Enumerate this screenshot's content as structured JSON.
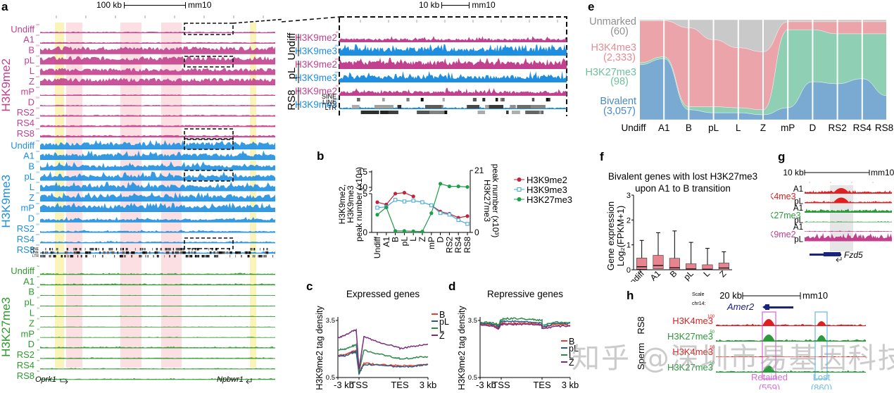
{
  "panel_a": {
    "label": "a",
    "scale": {
      "length": "100 kb",
      "assembly": "mm10"
    },
    "groups": [
      {
        "name": "H3K9me2",
        "color": "#c2418f",
        "scale_max": "100",
        "tracks": [
          "Undiff",
          "A1",
          "B",
          "pL",
          "L",
          "Z",
          "mP",
          "D",
          "RS2",
          "RS4",
          "RS8"
        ],
        "signal": [
          0.15,
          0.15,
          0.85,
          0.9,
          0.75,
          0.8,
          0.12,
          0.12,
          0.18,
          0.2,
          0.25
        ]
      },
      {
        "name": "H3K9me3",
        "color": "#1e8fe0",
        "scale_max": "150",
        "tracks": [
          "Undiff",
          "A1",
          "B",
          "pL",
          "L",
          "Z",
          "mP",
          "D",
          "RS2",
          "RS4",
          "RS8"
        ],
        "signal": [
          0.8,
          0.7,
          0.6,
          0.65,
          0.7,
          0.75,
          0.8,
          0.4,
          0.2,
          0.15,
          0.15
        ]
      },
      {
        "name": "H3K27me3",
        "color": "#2e9a2e",
        "scale_max": "50",
        "tracks": [
          "Undiff",
          "A1",
          "B",
          "pL",
          "L",
          "Z",
          "mP",
          "D",
          "RS2",
          "RS4",
          "RS8"
        ],
        "signal": [
          0.12,
          0.14,
          0.05,
          0.05,
          0.05,
          0.05,
          0.06,
          0.12,
          0.1,
          0.08,
          0.1
        ]
      }
    ],
    "repeat_labels": [
      "SINE",
      "LINE",
      "LTR"
    ],
    "genes": [
      {
        "name": "Oprk1"
      },
      {
        "name": "Npbwr1"
      }
    ]
  },
  "panel_a_zoom": {
    "scale": {
      "length": "10 kb",
      "assembly": "mm10"
    },
    "samples": [
      "Undiff",
      "pL",
      "RS8"
    ],
    "tracks": [
      {
        "sample": "Undiff",
        "mark": "H3K9me2",
        "color": "#c2418f",
        "scale_max": "50",
        "level": 0.35
      },
      {
        "sample": "Undiff",
        "mark": "H3K9me3",
        "color": "#1e8fe0",
        "scale_max": "150",
        "level": 0.8
      },
      {
        "sample": "pL",
        "mark": "H3K9me2",
        "color": "#c2418f",
        "scale_max": "100",
        "level": 0.75
      },
      {
        "sample": "pL",
        "mark": "H3K9me3",
        "color": "#1e8fe0",
        "scale_max": "150",
        "level": 0.65
      },
      {
        "sample": "RS8",
        "mark": "H3K9me2",
        "color": "#c2418f",
        "scale_max": "50",
        "level": 0.45
      },
      {
        "sample": "RS8",
        "mark": "H3K9me3",
        "color": "#1e8fe0",
        "scale_max": "150",
        "level": 0.15
      }
    ],
    "repeat_labels": [
      "SINE",
      "LINE",
      "LTR"
    ]
  },
  "panel_b": {
    "label": "b",
    "chart_data": {
      "type": "line",
      "categories": [
        "Undiff",
        "A1",
        "B",
        "pL",
        "L",
        "Z",
        "mP",
        "D",
        "RS2",
        "RS4",
        "RS8"
      ],
      "ylabel_left": [
        "H3K9me2,",
        "H3K9me3",
        "peak number (x10⁴)"
      ],
      "ylabel_right": [
        "H3K27me3",
        "peak number (x10³)"
      ],
      "left_ticks": [
        "0",
        "5",
        "10",
        "15"
      ],
      "right_ticks": [
        "0",
        "21"
      ],
      "series": [
        {
          "name": "H3K9me2",
          "axis": "left",
          "marker": "filled-circle",
          "color": "#c0233f",
          "values": [
            3.9,
            3.6,
            8.8,
            9.0,
            8.2,
            null,
            3.5,
            2.7,
            2.4,
            1.9,
            2.1
          ]
        },
        {
          "name": "H3K9me3",
          "axis": "left",
          "marker": "open-square",
          "color": "#3fa9d9",
          "values": [
            3.2,
            3.3,
            4.2,
            4.0,
            4.1,
            3.9,
            3.5,
            2.5,
            2.3,
            1.6,
            1.1
          ]
        },
        {
          "name": "H3K27me3",
          "axis": "right",
          "marker": "filled-circle",
          "color": "#1e9e4a",
          "values": [
            6.0,
            8.5,
            0.5,
            0.5,
            0.4,
            0.3,
            6.5,
            16.5,
            15.6,
            15.6,
            15.4
          ]
        }
      ]
    }
  },
  "panel_c": {
    "label": "c",
    "chart_data": {
      "type": "line",
      "title": "Expressed genes",
      "ylabel": "H3K9me2 tag density",
      "xticks": [
        "-3 kb",
        "TSS",
        "TES",
        "3 kb"
      ],
      "yticks": [
        "0.5",
        "3.5"
      ],
      "ylim": [
        0.5,
        3.5
      ],
      "series": [
        {
          "name": "B",
          "color": "#e8402f",
          "profile": [
            1.65,
            1.7,
            1.85,
            1.9,
            0.75,
            1.25,
            1.2,
            1.15,
            1.1,
            1.1,
            1.15,
            1.2
          ]
        },
        {
          "name": "pL",
          "color": "#2c5a86",
          "profile": [
            1.6,
            1.65,
            1.8,
            1.85,
            0.7,
            1.2,
            1.15,
            1.1,
            1.05,
            1.05,
            1.1,
            1.2
          ]
        },
        {
          "name": "L",
          "color": "#2e8a4a",
          "profile": [
            1.95,
            2.0,
            2.15,
            2.25,
            0.8,
            1.95,
            1.75,
            1.6,
            1.5,
            1.45,
            1.55,
            1.6
          ]
        },
        {
          "name": "Z",
          "color": "#7b2c7e",
          "profile": [
            2.6,
            2.7,
            2.95,
            3.0,
            0.9,
            2.65,
            2.4,
            2.2,
            2.05,
            2.0,
            2.15,
            2.25
          ]
        }
      ]
    }
  },
  "panel_d": {
    "label": "d",
    "chart_data": {
      "type": "line",
      "title": "Repressive genes",
      "ylabel": "H3K9me2 tag density",
      "xticks": [
        "-3 kb",
        "TSS",
        "TES",
        "3 kb"
      ],
      "yticks": [
        "0.5",
        "3.5"
      ],
      "ylim": [
        0.5,
        3.5
      ],
      "series": [
        {
          "name": "B",
          "color": "#e8402f",
          "profile": [
            3.3,
            3.3,
            3.25,
            3.1,
            3.35,
            3.35,
            3.35,
            3.35,
            3.3,
            3.1,
            3.3,
            3.25
          ]
        },
        {
          "name": "pL",
          "color": "#2c5a86",
          "profile": [
            3.35,
            3.35,
            3.3,
            3.2,
            3.45,
            3.45,
            3.45,
            3.4,
            3.35,
            3.15,
            3.35,
            3.35
          ]
        },
        {
          "name": "L",
          "color": "#2e8a4a",
          "profile": [
            3.4,
            3.4,
            3.35,
            3.25,
            3.55,
            3.6,
            3.6,
            3.55,
            3.5,
            3.25,
            3.4,
            3.4
          ]
        },
        {
          "name": "Z",
          "color": "#7b2c7e",
          "profile": [
            3.25,
            3.25,
            3.2,
            3.05,
            3.3,
            3.3,
            3.3,
            3.3,
            3.25,
            3.05,
            3.2,
            3.2
          ]
        }
      ]
    }
  },
  "panel_e": {
    "label": "e",
    "chart_data": {
      "type": "alluvial",
      "stages": [
        "Undiff",
        "A1",
        "B",
        "pL",
        "L",
        "Z",
        "mP",
        "D",
        "RS2",
        "RS4",
        "RS8"
      ],
      "states": [
        {
          "name": "Unmarked",
          "count": "(60)",
          "color": "#c9c9c9"
        },
        {
          "name": "H3K4me3",
          "count": "(2,333)",
          "color": "#eba4a9"
        },
        {
          "name": "H3K27me3",
          "count": "(98)",
          "color": "#8fd0b4"
        },
        {
          "name": "Bivalent",
          "count": "(3,057)",
          "color": "#7aaad2"
        }
      ],
      "fractions": [
        {
          "stage": "Undiff",
          "Unmarked": 0.01,
          "H3K4me3": 0.42,
          "H3K27me3": 0.02,
          "Bivalent": 0.55
        },
        {
          "stage": "A1",
          "Unmarked": 0.01,
          "H3K4me3": 0.36,
          "H3K27me3": 0.02,
          "Bivalent": 0.61
        },
        {
          "stage": "B",
          "Unmarked": 0.08,
          "H3K4me3": 0.79,
          "H3K27me3": 0.03,
          "Bivalent": 0.1
        },
        {
          "stage": "pL",
          "Unmarked": 0.2,
          "H3K4me3": 0.67,
          "H3K27me3": 0.06,
          "Bivalent": 0.07
        },
        {
          "stage": "L",
          "Unmarked": 0.28,
          "H3K4me3": 0.6,
          "H3K27me3": 0.05,
          "Bivalent": 0.07
        },
        {
          "stage": "Z",
          "Unmarked": 0.32,
          "H3K4me3": 0.58,
          "H3K27me3": 0.05,
          "Bivalent": 0.05
        },
        {
          "stage": "mP",
          "Unmarked": 0.02,
          "H3K4me3": 0.08,
          "H3K27me3": 0.78,
          "Bivalent": 0.12
        },
        {
          "stage": "D",
          "Unmarked": 0.02,
          "H3K4me3": 0.08,
          "H3K27me3": 0.52,
          "Bivalent": 0.38
        },
        {
          "stage": "RS2",
          "Unmarked": 0.02,
          "H3K4me3": 0.12,
          "H3K27me3": 0.5,
          "Bivalent": 0.36
        },
        {
          "stage": "RS4",
          "Unmarked": 0.02,
          "H3K4me3": 0.12,
          "H3K27me3": 0.45,
          "Bivalent": 0.41
        },
        {
          "stage": "RS8",
          "Unmarked": 0.02,
          "H3K4me3": 0.12,
          "H3K27me3": 0.62,
          "Bivalent": 0.24
        }
      ]
    }
  },
  "panel_f": {
    "label": "f",
    "chart_data": {
      "type": "box",
      "title": [
        "Bivalent genes with lost H3K27me3",
        "upon A1 to B transition"
      ],
      "ylabel": [
        "Gene expression",
        "Log₂(FPKM+1)"
      ],
      "categories": [
        "Undiff",
        "A1",
        "B",
        "pL",
        "L",
        "Z"
      ],
      "yticks": [
        "0",
        "1",
        "2",
        "3"
      ],
      "ylim": [
        0,
        3
      ],
      "boxes": [
        {
          "min": 0,
          "q1": 0.02,
          "median": 0.12,
          "q3": 0.47,
          "max": 1.18
        },
        {
          "min": 0,
          "q1": 0.04,
          "median": 0.17,
          "q3": 0.58,
          "max": 1.49
        },
        {
          "min": 0,
          "q1": 0.01,
          "median": 0.08,
          "q3": 0.46,
          "max": 1.56
        },
        {
          "min": 0,
          "q1": 0.0,
          "median": 0.03,
          "q3": 0.24,
          "max": 1.1
        },
        {
          "min": 0,
          "q1": 0.0,
          "median": 0.02,
          "q3": 0.2,
          "max": 0.86
        },
        {
          "min": 0,
          "q1": 0.0,
          "median": 0.07,
          "q3": 0.27,
          "max": 0.72
        }
      ],
      "box_color": "#e7848f"
    }
  },
  "panel_g": {
    "label": "g",
    "scale": {
      "length": "10 kb",
      "assembly": "mm10"
    },
    "marks": [
      {
        "name": "H3K4me3",
        "color": "#e02020",
        "samples": [
          "A1",
          "pL"
        ],
        "scale_max": "50"
      },
      {
        "name": "H3K27me3",
        "color": "#2a9a3a",
        "samples": [
          "A1",
          "pL"
        ],
        "scale_max": "30"
      },
      {
        "name": "H3K9me2",
        "color": "#c2418f",
        "samples": [
          "A1",
          "pL"
        ],
        "scale_max": "50"
      }
    ],
    "gene": "Fzd5"
  },
  "panel_h": {
    "label": "h",
    "scale_label": "Scale",
    "chrom": "chr14:",
    "scale": {
      "length": "20 kb",
      "assembly": "mm10"
    },
    "gene": "Amer2",
    "stages": [
      "RS8",
      "Sperm"
    ],
    "tracks": [
      {
        "stage": "RS8",
        "mark": "H3K4me3",
        "color": "#e02020",
        "scale_max": "100"
      },
      {
        "stage": "RS8",
        "mark": "H3K27me3",
        "color": "#2a9a3a",
        "scale_max": "50"
      },
      {
        "stage": "Sperm",
        "mark": "H3K4me3",
        "color": "#e02020",
        "scale_max": "50"
      },
      {
        "stage": "Sperm",
        "mark": "H3K27me3",
        "color": "#2a9a3a",
        "scale_max": "50"
      }
    ],
    "regions": [
      {
        "name": "Retained",
        "count": "(559)",
        "color": "#d86fd8"
      },
      {
        "name": "Lost",
        "count": "(860)",
        "color": "#6fbbe6"
      }
    ]
  },
  "watermark": "知乎 @深圳市易基因科技"
}
